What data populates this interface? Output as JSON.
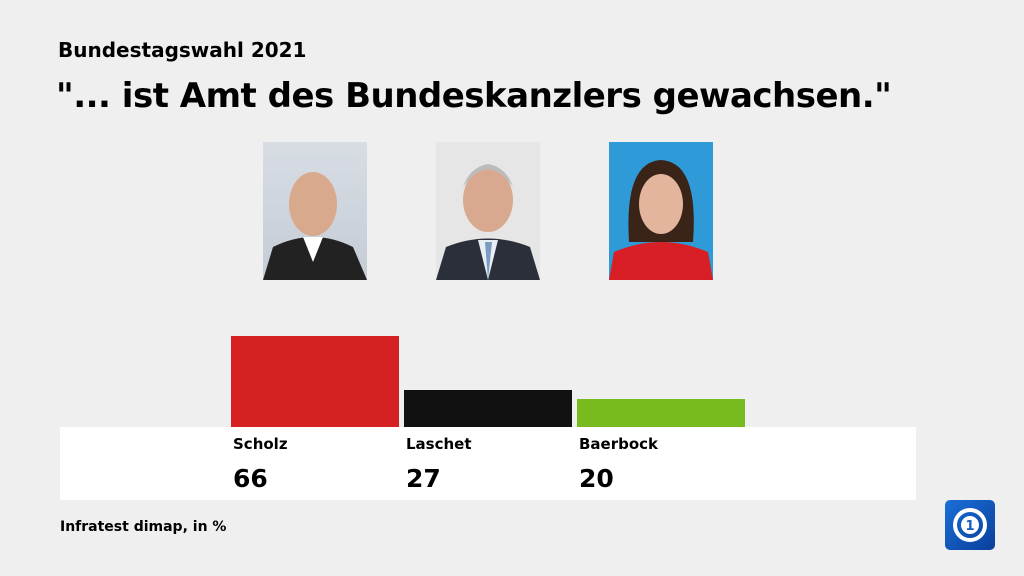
{
  "kicker": "Bundestagswahl 2021",
  "headline": "\"... ist Amt des Bundeskanzlers gewachsen.\"",
  "source": "Infratest dimap, in %",
  "chart_data": {
    "type": "bar",
    "categories": [
      "Scholz",
      "Laschet",
      "Baerbock"
    ],
    "values": [
      66,
      27,
      20
    ],
    "colors": [
      "#d52121",
      "#111111",
      "#78bb1e"
    ],
    "unit": "%"
  },
  "logo": "ARD tagesschau logo"
}
